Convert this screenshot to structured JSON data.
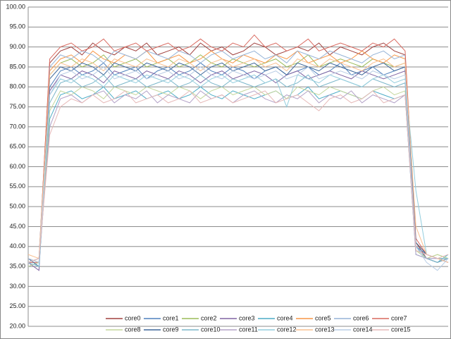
{
  "chart_data": {
    "type": "line",
    "categories": [
      null,
      null,
      null,
      null,
      null,
      null,
      null,
      null,
      null,
      null,
      null,
      null,
      null,
      null,
      null,
      null,
      null,
      null,
      null,
      null,
      null,
      null,
      null,
      null,
      null,
      null,
      null,
      null,
      null,
      null,
      null,
      null,
      null,
      null,
      null,
      null,
      null,
      null,
      null,
      null
    ],
    "ylim": [
      20,
      100
    ],
    "yticks": [
      {
        "value": 20,
        "label": "20.00"
      },
      {
        "value": 25,
        "label": "25.00"
      },
      {
        "value": 30,
        "label": "30.00"
      },
      {
        "value": 35,
        "label": "35.00"
      },
      {
        "value": 40,
        "label": "40.00"
      },
      {
        "value": 45,
        "label": "45.00"
      },
      {
        "value": 50,
        "label": "50.00"
      },
      {
        "value": 55,
        "label": "55.00"
      },
      {
        "value": 60,
        "label": "60.00"
      },
      {
        "value": 65,
        "label": "65.00"
      },
      {
        "value": 70,
        "label": "70.00"
      },
      {
        "value": 75,
        "label": "75.00"
      },
      {
        "value": 80,
        "label": "80.00"
      },
      {
        "value": 85,
        "label": "85.00"
      },
      {
        "value": 90,
        "label": "90.00"
      },
      {
        "value": 95,
        "label": "95.00"
      },
      {
        "value": 100,
        "label": "100.00"
      }
    ],
    "grid": true,
    "legend": "bottom",
    "series": [
      {
        "name": "core0",
        "color": "#A0413E",
        "values": [
          36,
          37,
          86,
          89,
          90,
          88,
          91,
          89,
          88,
          90,
          89,
          91,
          88,
          89,
          90,
          88,
          91,
          89,
          90,
          88,
          89,
          91,
          90,
          88,
          89,
          90,
          89,
          91,
          88,
          90,
          89,
          88,
          90,
          91,
          89,
          88,
          41,
          37,
          36,
          37
        ]
      },
      {
        "name": "core1",
        "color": "#4F81BD",
        "values": [
          35,
          36,
          80,
          84,
          85,
          83,
          84,
          86,
          83,
          84,
          85,
          82,
          84,
          85,
          83,
          84,
          86,
          84,
          83,
          85,
          84,
          82,
          84,
          85,
          83,
          84,
          85,
          83,
          84,
          86,
          83,
          84,
          85,
          83,
          84,
          85,
          40,
          38,
          37,
          36
        ]
      },
      {
        "name": "core2",
        "color": "#9BBB59",
        "values": [
          37,
          36,
          83,
          86,
          87,
          85,
          86,
          88,
          85,
          86,
          87,
          85,
          86,
          87,
          85,
          86,
          88,
          86,
          85,
          87,
          86,
          85,
          86,
          87,
          85,
          86,
          88,
          85,
          86,
          87,
          86,
          85,
          87,
          86,
          85,
          86,
          39,
          37,
          38,
          37
        ]
      },
      {
        "name": "core3",
        "color": "#8064A2",
        "values": [
          36,
          34,
          79,
          83,
          82,
          84,
          83,
          81,
          84,
          83,
          82,
          84,
          83,
          82,
          84,
          83,
          81,
          83,
          84,
          82,
          83,
          84,
          83,
          81,
          83,
          84,
          82,
          83,
          84,
          83,
          82,
          84,
          83,
          82,
          83,
          84,
          40,
          37,
          36,
          37
        ]
      },
      {
        "name": "core4",
        "color": "#4BACC6",
        "values": [
          36,
          35,
          72,
          78,
          79,
          77,
          78,
          80,
          77,
          78,
          79,
          77,
          78,
          79,
          77,
          78,
          80,
          78,
          77,
          79,
          78,
          77,
          78,
          79,
          77,
          78,
          80,
          77,
          78,
          79,
          78,
          77,
          79,
          78,
          77,
          78,
          38,
          37,
          36,
          38
        ]
      },
      {
        "name": "core5",
        "color": "#F79646",
        "values": [
          37,
          36,
          84,
          87,
          88,
          86,
          89,
          87,
          86,
          88,
          87,
          89,
          86,
          87,
          88,
          86,
          87,
          89,
          87,
          86,
          88,
          87,
          86,
          88,
          87,
          89,
          86,
          87,
          88,
          86,
          87,
          89,
          87,
          86,
          88,
          87,
          41,
          38,
          37,
          37
        ]
      },
      {
        "name": "core6",
        "color": "#95B3D7",
        "values": [
          36,
          37,
          85,
          88,
          87,
          89,
          88,
          86,
          89,
          88,
          87,
          89,
          88,
          87,
          89,
          88,
          86,
          88,
          89,
          87,
          88,
          89,
          87,
          88,
          86,
          89,
          88,
          87,
          89,
          88,
          87,
          86,
          88,
          89,
          87,
          88,
          40,
          37,
          37,
          36
        ]
      },
      {
        "name": "core7",
        "color": "#D9695F",
        "values": [
          36,
          36,
          87,
          90,
          91,
          89,
          90,
          92,
          89,
          90,
          91,
          89,
          90,
          91,
          89,
          90,
          92,
          90,
          89,
          91,
          90,
          93,
          90,
          91,
          89,
          90,
          92,
          89,
          90,
          91,
          90,
          89,
          91,
          90,
          92,
          89,
          42,
          38,
          37,
          36
        ]
      },
      {
        "name": "core8",
        "color": "#C3D69B",
        "values": [
          35,
          36,
          74,
          79,
          78,
          80,
          79,
          77,
          80,
          79,
          78,
          80,
          79,
          78,
          80,
          79,
          77,
          79,
          80,
          78,
          79,
          80,
          78,
          79,
          77,
          80,
          79,
          78,
          80,
          79,
          78,
          77,
          79,
          80,
          78,
          79,
          39,
          37,
          38,
          37
        ]
      },
      {
        "name": "core9",
        "color": "#3D6699",
        "values": [
          37,
          35,
          82,
          85,
          84,
          86,
          85,
          83,
          86,
          85,
          84,
          86,
          85,
          84,
          86,
          85,
          83,
          85,
          86,
          84,
          85,
          86,
          84,
          85,
          83,
          86,
          85,
          84,
          86,
          85,
          84,
          83,
          85,
          86,
          84,
          85,
          41,
          38,
          37,
          37
        ]
      },
      {
        "name": "core10",
        "color": "#7AB6C9",
        "values": [
          36,
          37,
          76,
          81,
          82,
          80,
          81,
          83,
          80,
          81,
          82,
          80,
          81,
          82,
          80,
          81,
          83,
          81,
          80,
          82,
          81,
          80,
          81,
          82,
          80,
          81,
          83,
          80,
          81,
          82,
          81,
          80,
          82,
          81,
          80,
          81,
          40,
          37,
          36,
          37
        ]
      },
      {
        "name": "core11",
        "color": "#B3A2C7",
        "values": [
          37,
          36,
          70,
          77,
          78,
          76,
          78,
          79,
          76,
          78,
          77,
          79,
          76,
          78,
          77,
          76,
          79,
          77,
          78,
          76,
          78,
          79,
          77,
          76,
          78,
          77,
          79,
          76,
          78,
          77,
          79,
          76,
          78,
          77,
          76,
          78,
          38,
          37,
          37,
          36
        ]
      },
      {
        "name": "core12",
        "color": "#93CDDD",
        "values": [
          36,
          35,
          78,
          82,
          81,
          83,
          82,
          80,
          83,
          82,
          81,
          83,
          82,
          81,
          83,
          82,
          80,
          82,
          83,
          81,
          82,
          83,
          81,
          82,
          75,
          83,
          82,
          81,
          83,
          82,
          81,
          80,
          82,
          83,
          81,
          82,
          54,
          38,
          37,
          37
        ]
      },
      {
        "name": "core13",
        "color": "#FAC090",
        "values": [
          38,
          37,
          83,
          86,
          85,
          87,
          86,
          84,
          87,
          86,
          85,
          87,
          86,
          85,
          87,
          86,
          84,
          86,
          87,
          85,
          86,
          87,
          85,
          86,
          84,
          87,
          86,
          85,
          87,
          86,
          85,
          84,
          86,
          87,
          85,
          86,
          45,
          38,
          37,
          36
        ]
      },
      {
        "name": "core14",
        "color": "#B9CDE5",
        "values": [
          37,
          36,
          78,
          83,
          84,
          82,
          83,
          85,
          82,
          83,
          84,
          82,
          83,
          84,
          82,
          83,
          85,
          83,
          82,
          84,
          83,
          82,
          83,
          84,
          82,
          83,
          85,
          82,
          83,
          84,
          83,
          82,
          84,
          83,
          82,
          83,
          40,
          36,
          34,
          37
        ]
      },
      {
        "name": "core15",
        "color": "#E6B9B8",
        "values": [
          36,
          37,
          68,
          75,
          77,
          76,
          78,
          76,
          77,
          79,
          76,
          77,
          78,
          76,
          77,
          79,
          76,
          77,
          78,
          76,
          77,
          78,
          79,
          76,
          77,
          78,
          76,
          74,
          77,
          78,
          76,
          77,
          79,
          76,
          77,
          78,
          39,
          38,
          37,
          38
        ]
      }
    ]
  }
}
